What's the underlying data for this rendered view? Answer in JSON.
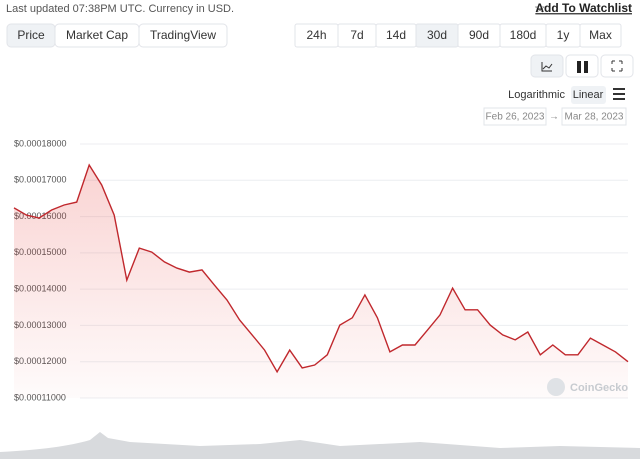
{
  "header": {
    "status": "Last updated 07:38PM UTC. Currency in USD.",
    "watchlist": "Add To Watchlist"
  },
  "tabs": [
    "Price",
    "Market Cap",
    "TradingView"
  ],
  "ranges": [
    "24h",
    "7d",
    "14d",
    "30d",
    "90d",
    "180d",
    "1y",
    "Max"
  ],
  "scale_options": [
    "Logarithmic",
    "Linear"
  ],
  "date_range": {
    "from": "Feb 26, 2023",
    "separator": "→",
    "to": "Mar 28, 2023"
  },
  "watermark": "CoinGecko",
  "chart_data": {
    "type": "line",
    "color": "#c0282d",
    "grid": true,
    "categories": [
      null,
      null,
      null,
      null,
      null,
      null,
      null,
      null,
      null,
      null,
      null,
      null,
      null,
      null,
      null,
      null,
      null,
      null,
      null,
      null,
      null,
      null,
      null,
      null,
      null,
      null,
      null,
      null,
      null,
      null,
      null,
      null,
      null,
      null,
      null,
      null,
      null,
      null,
      null,
      null,
      null,
      null,
      null,
      null,
      null,
      null,
      null,
      null,
      null,
      null
    ],
    "values": [
      0.0001624,
      0.0001604,
      0.0001596,
      0.0001618,
      0.0001632,
      0.000164,
      0.0001742,
      0.0001687,
      0.0001604,
      0.0001425,
      0.0001513,
      0.0001502,
      0.0001475,
      0.0001458,
      0.0001447,
      0.0001453,
      0.0001411,
      0.000137,
      0.0001315,
      0.0001274,
      0.0001232,
      0.0001172,
      0.0001232,
      0.0001183,
      0.0001191,
      0.0001219,
      0.0001301,
      0.0001321,
      0.0001384,
      0.0001321,
      0.0001227,
      0.0001246,
      0.0001246,
      0.0001287,
      0.0001329,
      0.0001403,
      0.0001343,
      0.0001343,
      0.0001301,
      0.0001274,
      0.000126,
      0.0001282,
      0.0001219,
      0.0001246,
      0.0001219,
      0.0001219,
      0.0001265,
      0.0001246,
      0.0001227,
      0.00012
    ],
    "ylim": [
      0.00011,
      0.00018
    ],
    "yticks": [
      {
        "value": 0.00011,
        "label": "$0.00011000"
      },
      {
        "value": 0.00012,
        "label": "$0.00012000"
      },
      {
        "value": 0.00013,
        "label": "$0.00013000"
      },
      {
        "value": 0.00014,
        "label": "$0.00014000"
      },
      {
        "value": 0.00015,
        "label": "$0.00015000"
      },
      {
        "value": 0.00016,
        "label": "$0.00016000"
      },
      {
        "value": 0.00017,
        "label": "$0.00017000"
      },
      {
        "value": 0.00018,
        "label": "$0.00018000"
      }
    ]
  }
}
